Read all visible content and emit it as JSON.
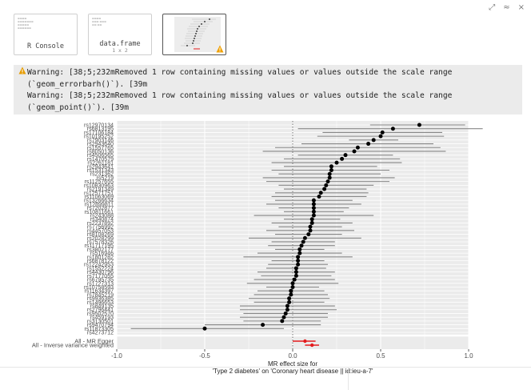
{
  "window_controls": {
    "restore": "⤢",
    "collapse": "≈",
    "close": "×"
  },
  "thumbnails": [
    {
      "label": "R Console",
      "sublabel": ""
    },
    {
      "label": "data.frame",
      "sublabel": "1 x 2"
    },
    {
      "label": "",
      "sublabel": "",
      "has_warning": true
    }
  ],
  "warnings": [
    "Warning: [38;5;232mRemoved 1 row containing missing values or values outside the scale range",
    "(`geom_errorbarh()`). [39m",
    "Warning: [38;5;232mRemoved 1 row containing missing values or values outside the scale range",
    "(`geom_point()`). [39m"
  ],
  "chart_data": {
    "type": "forest",
    "xlabel_line1": "MR effect size for",
    "xlabel_line2": "'Type 2 diabetes' on 'Coronary heart disease || id:ieu-a-7'",
    "xlim": [
      -1.0,
      1.0
    ],
    "x_ticks": [
      "-1.0",
      "-0.5",
      "0.0",
      "0.5",
      "1.0"
    ],
    "x_tick_values": [
      -1.0,
      -0.5,
      0.0,
      0.5,
      1.0
    ],
    "snp_rows": [
      {
        "label": "rs12970134",
        "b": 0.72,
        "lo": 0.44,
        "hi": 0.98
      },
      {
        "label": "rs6813195",
        "b": 0.57,
        "lo": 0.03,
        "hi": 1.08
      },
      {
        "label": "rs17106184",
        "b": 0.51,
        "lo": 0.17,
        "hi": 0.85
      },
      {
        "label": "rs10195252",
        "b": 0.5,
        "lo": 0.14,
        "hi": 0.86
      },
      {
        "label": "rs7903146",
        "b": 0.46,
        "lo": 0.32,
        "hi": 0.6
      },
      {
        "label": "rs2943640",
        "b": 0.43,
        "lo": 0.05,
        "hi": 0.8
      },
      {
        "label": "rs1557765",
        "b": 0.37,
        "lo": -0.1,
        "hi": 0.84
      },
      {
        "label": "rs8050136",
        "b": 0.35,
        "lo": -0.17,
        "hi": 0.87
      },
      {
        "label": "rs4506565",
        "b": 0.3,
        "lo": 0.03,
        "hi": 0.57
      },
      {
        "label": "rs1470579",
        "b": 0.28,
        "lo": -0.05,
        "hi": 0.61
      },
      {
        "label": "rs2261181",
        "b": 0.25,
        "lo": -0.12,
        "hi": 0.62
      },
      {
        "label": "rs2943641",
        "b": 0.22,
        "lo": -0.05,
        "hi": 0.48
      },
      {
        "label": "rs1531343",
        "b": 0.22,
        "lo": -0.12,
        "hi": 0.55
      },
      {
        "label": "rs231362",
        "b": 0.21,
        "lo": -0.08,
        "hi": 0.5
      },
      {
        "label": "rs5219",
        "b": 0.21,
        "lo": -0.17,
        "hi": 0.58
      },
      {
        "label": "rs11257655",
        "b": 0.2,
        "lo": -0.15,
        "hi": 0.55
      },
      {
        "label": "rs10830963",
        "b": 0.19,
        "lo": -0.08,
        "hi": 0.46
      },
      {
        "label": "rs2191349",
        "b": 0.18,
        "lo": -0.05,
        "hi": 0.42
      },
      {
        "label": "rs12571751",
        "b": 0.16,
        "lo": -0.1,
        "hi": 0.43
      },
      {
        "label": "rs11063069",
        "b": 0.15,
        "lo": -0.12,
        "hi": 0.42
      },
      {
        "label": "rs13266634",
        "b": 0.12,
        "lo": -0.1,
        "hi": 0.34
      },
      {
        "label": "rs12899811",
        "b": 0.12,
        "lo": -0.15,
        "hi": 0.39
      },
      {
        "label": "rs7202877",
        "b": 0.12,
        "lo": -0.08,
        "hi": 0.32
      },
      {
        "label": "rs10811661",
        "b": 0.12,
        "lo": -0.05,
        "hi": 0.29
      },
      {
        "label": "rs243088",
        "b": 0.12,
        "lo": -0.22,
        "hi": 0.46
      },
      {
        "label": "rs340874",
        "b": 0.11,
        "lo": -0.05,
        "hi": 0.27
      },
      {
        "label": "rs2237892",
        "b": 0.11,
        "lo": -0.12,
        "hi": 0.34
      },
      {
        "label": "rs7756992",
        "b": 0.1,
        "lo": -0.08,
        "hi": 0.28
      },
      {
        "label": "rs4457053",
        "b": 0.1,
        "lo": -0.15,
        "hi": 0.35
      },
      {
        "label": "rs8108269",
        "b": 0.09,
        "lo": -0.1,
        "hi": 0.28
      },
      {
        "label": "rs2028299",
        "b": 0.07,
        "lo": -0.25,
        "hi": 0.39
      },
      {
        "label": "rs7578326",
        "b": 0.06,
        "lo": -0.12,
        "hi": 0.24
      },
      {
        "label": "rs11717195",
        "b": 0.05,
        "lo": -0.14,
        "hi": 0.24
      },
      {
        "label": "rs3802177",
        "b": 0.04,
        "lo": -0.1,
        "hi": 0.18
      },
      {
        "label": "rs516946",
        "b": 0.04,
        "lo": -0.2,
        "hi": 0.28
      },
      {
        "label": "rs1801282",
        "b": 0.03,
        "lo": -0.28,
        "hi": 0.34
      },
      {
        "label": "rs6878122",
        "b": 0.03,
        "lo": -0.12,
        "hi": 0.18
      },
      {
        "label": "rs12242953",
        "b": 0.03,
        "lo": -0.14,
        "hi": 0.2
      },
      {
        "label": "rs1552224",
        "b": 0.02,
        "lo": -0.15,
        "hi": 0.19
      },
      {
        "label": "rs4430796",
        "b": 0.02,
        "lo": -0.2,
        "hi": 0.24
      },
      {
        "label": "rs7177055",
        "b": 0.02,
        "lo": -0.18,
        "hi": 0.22
      },
      {
        "label": "rs6795735",
        "b": 0.01,
        "lo": -0.22,
        "hi": 0.24
      },
      {
        "label": "rs1727313",
        "b": 0.0,
        "lo": -0.26,
        "hi": 0.26
      },
      {
        "label": "rs10758593",
        "b": 0.0,
        "lo": -0.15,
        "hi": 0.15
      },
      {
        "label": "rs11634397",
        "b": -0.01,
        "lo": -0.2,
        "hi": 0.18
      },
      {
        "label": "rs7845219",
        "b": -0.01,
        "lo": -0.22,
        "hi": 0.2
      },
      {
        "label": "rs9936385",
        "b": -0.02,
        "lo": -0.25,
        "hi": 0.21
      },
      {
        "label": "rs1496653",
        "b": -0.02,
        "lo": -0.22,
        "hi": 0.18
      },
      {
        "label": "rs849135",
        "b": -0.03,
        "lo": -0.3,
        "hi": 0.24
      },
      {
        "label": "rs2796441",
        "b": -0.03,
        "lo": -0.3,
        "hi": 0.25
      },
      {
        "label": "rs9502570",
        "b": -0.04,
        "lo": -0.28,
        "hi": 0.2
      },
      {
        "label": "rs459193",
        "b": -0.05,
        "lo": -0.3,
        "hi": 0.2
      },
      {
        "label": "rs3130501",
        "b": -0.06,
        "lo": -0.28,
        "hi": 0.16
      },
      {
        "label": "rs9470794",
        "b": -0.17,
        "lo": -0.5,
        "hi": 0.16
      },
      {
        "label": "rs11873305",
        "b": -0.5,
        "lo": -0.92,
        "hi": -0.05
      }
    ],
    "tick_labels": [
      "rs12970134",
      "rs6813195",
      "rs17106184",
      "rs10195252",
      "rs7903146",
      "rs2943640",
      "rs1557765",
      "rs8050136",
      "rs4506565",
      "rs1470579",
      "rs2261181",
      "rs2943641",
      "rs1531343",
      "rs231362",
      "rs5219",
      "rs11257655",
      "rs10830963",
      "rs2191349",
      "rs12571751",
      "rs11063069",
      "rs13266634",
      "rs12899811",
      "rs7202877",
      "rs10811661",
      "rs243088",
      "rs340874",
      "rs2237892",
      "rs7756992",
      "rs4457053",
      "rs8108269",
      "rs2028299",
      "rs7578326",
      "rs11717195",
      "rs3802177",
      "rs516946",
      "rs1801282",
      "rs6878122",
      "rs12242953",
      "rs1552224",
      "rs4430796",
      "rs7177055",
      "rs6795735",
      "rs1727313",
      "rs10758593",
      "rs11634397",
      "rs7845219",
      "rs9936385",
      "rs1496653",
      "rs849135",
      "rs2796441",
      "rs9502570",
      "rs459193",
      "rs3130501",
      "rs9470794",
      "rs11873305",
      "rs4273712"
    ],
    "summary_rows": [
      {
        "label": "All - MR Egger",
        "b": 0.07,
        "lo": 0.0,
        "hi": 0.13
      },
      {
        "label": "All - Inverse variance weighted",
        "b": 0.11,
        "lo": 0.07,
        "hi": 0.15
      }
    ],
    "colors": {
      "point": "#000000",
      "errorbar": "#888888",
      "summary": "#e31a1c",
      "panel_bg": "#ebebeb",
      "grid": "#ffffff",
      "zero_line": "#555555"
    },
    "grid": true,
    "zero_line": "dotted vertical at x = 0"
  }
}
